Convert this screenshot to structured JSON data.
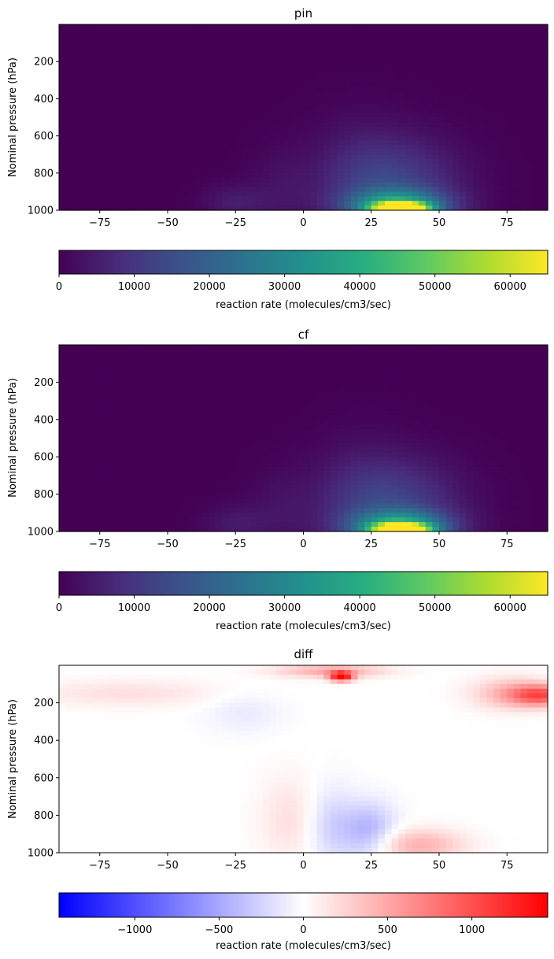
{
  "chart_data": [
    {
      "type": "heatmap",
      "title": "pin",
      "xlabel": "",
      "ylabel": "Nominal pressure (hPa)",
      "xlim": [
        -90,
        90
      ],
      "ylim": [
        1000,
        0
      ],
      "xticks": [
        "−75",
        "−50",
        "−25",
        "0",
        "25",
        "50",
        "75"
      ],
      "yticks": [
        "200",
        "400",
        "600",
        "800",
        "1000"
      ],
      "colormap": "viridis",
      "colorbar": {
        "label": "reaction rate (molecules/cm3/sec)",
        "range": [
          0,
          65000
        ],
        "ticks": [
          "0",
          "10000",
          "20000",
          "30000",
          "40000",
          "50000",
          "60000"
        ]
      },
      "features": [
        {
          "lat": 36,
          "p": 985,
          "value": 65000,
          "lat_spread": 7,
          "p_spread": 18
        },
        {
          "lat": 35,
          "p": 970,
          "value": 30000,
          "lat_spread": 12,
          "p_spread": 55
        },
        {
          "lat": 35,
          "p": 880,
          "value": 12000,
          "lat_spread": 16,
          "p_spread": 180
        },
        {
          "lat": 20,
          "p": 850,
          "value": 5000,
          "lat_spread": 12,
          "p_spread": 220
        },
        {
          "lat": -25,
          "p": 960,
          "value": 5000,
          "lat_spread": 8,
          "p_spread": 70
        },
        {
          "lat": -8,
          "p": 880,
          "value": 3000,
          "lat_spread": 8,
          "p_spread": 150
        }
      ]
    },
    {
      "type": "heatmap",
      "title": "cf",
      "xlabel": "",
      "ylabel": "Nominal pressure (hPa)",
      "xlim": [
        -90,
        90
      ],
      "ylim": [
        1000,
        0
      ],
      "xticks": [
        "−75",
        "−50",
        "−25",
        "0",
        "25",
        "50",
        "75"
      ],
      "yticks": [
        "200",
        "400",
        "600",
        "800",
        "1000"
      ],
      "colormap": "viridis",
      "colorbar": {
        "label": "reaction rate (molecules/cm3/sec)",
        "range": [
          0,
          65000
        ],
        "ticks": [
          "0",
          "10000",
          "20000",
          "30000",
          "40000",
          "50000",
          "60000"
        ]
      },
      "features": [
        {
          "lat": 36,
          "p": 985,
          "value": 65000,
          "lat_spread": 7,
          "p_spread": 18
        },
        {
          "lat": 36,
          "p": 970,
          "value": 31000,
          "lat_spread": 12,
          "p_spread": 55
        },
        {
          "lat": 35,
          "p": 880,
          "value": 12000,
          "lat_spread": 16,
          "p_spread": 180
        },
        {
          "lat": 20,
          "p": 850,
          "value": 5000,
          "lat_spread": 12,
          "p_spread": 220
        },
        {
          "lat": -25,
          "p": 960,
          "value": 4500,
          "lat_spread": 8,
          "p_spread": 70
        },
        {
          "lat": -8,
          "p": 880,
          "value": 3000,
          "lat_spread": 8,
          "p_spread": 150
        }
      ]
    },
    {
      "type": "heatmap",
      "title": "diff",
      "xlabel": "",
      "ylabel": "Nominal pressure (hPa)",
      "xlim": [
        -90,
        90
      ],
      "ylim": [
        1000,
        0
      ],
      "xticks": [
        "−75",
        "−50",
        "−25",
        "0",
        "25",
        "50",
        "75"
      ],
      "yticks": [
        "200",
        "400",
        "600",
        "800",
        "1000"
      ],
      "colormap": "bwr",
      "colorbar": {
        "label": "reaction rate (molecules/cm3/sec)",
        "range": [
          -1450,
          1450
        ],
        "ticks": [
          "−1000",
          "−500",
          "0",
          "500",
          "1000"
        ]
      },
      "features": [
        {
          "lat": 14,
          "p": 60,
          "value": 1400,
          "lat_spread": 3,
          "p_spread": 18
        },
        {
          "lat": 10,
          "p": 30,
          "value": 500,
          "lat_spread": 14,
          "p_spread": 25
        },
        {
          "lat": 88,
          "p": 160,
          "value": 900,
          "lat_spread": 8,
          "p_spread": 40
        },
        {
          "lat": 76,
          "p": 150,
          "value": 400,
          "lat_spread": 10,
          "p_spread": 60
        },
        {
          "lat": -65,
          "p": 150,
          "value": 180,
          "lat_spread": 25,
          "p_spread": 50
        },
        {
          "lat": 24,
          "p": 890,
          "value": -450,
          "lat_spread": 7,
          "p_spread": 110
        },
        {
          "lat": 10,
          "p": 860,
          "value": -250,
          "lat_spread": 6,
          "p_spread": 150
        },
        {
          "lat": 42,
          "p": 960,
          "value": 450,
          "lat_spread": 12,
          "p_spread": 60
        },
        {
          "lat": -5,
          "p": 820,
          "value": 180,
          "lat_spread": 8,
          "p_spread": 160
        },
        {
          "lat": -22,
          "p": 250,
          "value": -120,
          "lat_spread": 10,
          "p_spread": 80
        }
      ]
    }
  ]
}
